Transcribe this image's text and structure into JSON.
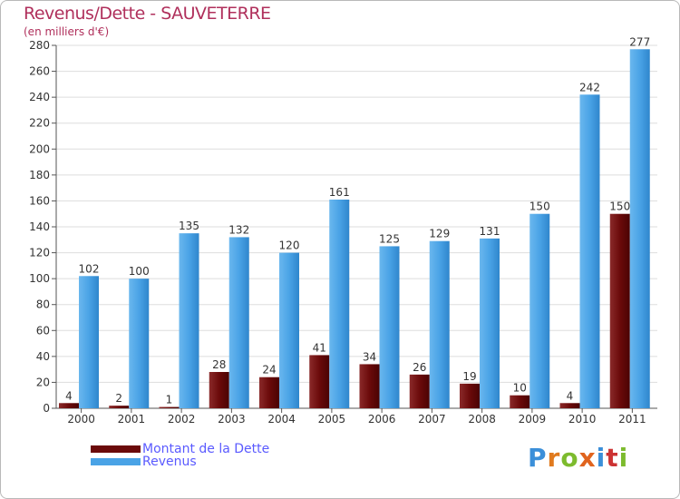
{
  "header": {
    "title": "Revenus/Dette - SAUVETERRE",
    "subtitle": "(en milliers d'€)"
  },
  "legend": [
    {
      "label": "Montant de la Dette",
      "color": "#6b0a0a"
    },
    {
      "label": "Revenus",
      "color": "#4aa3e6"
    }
  ],
  "logo": {
    "text": "Proxiti",
    "letters": [
      "P",
      "r",
      "o",
      "x",
      "i",
      "t",
      "i"
    ],
    "colors": [
      "#3b8fd9",
      "#e07a1e",
      "#7dbb2e",
      "#e0641e",
      "#3b8fd9",
      "#c33",
      "#7dbb2e"
    ]
  },
  "chart_data": {
    "type": "bar",
    "title": "Revenus/Dette - SAUVETERRE",
    "ylabel": "(en milliers d'€)",
    "categories": [
      "2000",
      "2001",
      "2002",
      "2003",
      "2004",
      "2005",
      "2006",
      "2007",
      "2008",
      "2009",
      "2010",
      "2011"
    ],
    "series": [
      {
        "name": "Montant de la Dette",
        "color": "#6b0a0a",
        "values": [
          4,
          2,
          1,
          28,
          24,
          41,
          34,
          26,
          19,
          10,
          4,
          150
        ]
      },
      {
        "name": "Revenus",
        "color": "#4aa3e6",
        "values": [
          102,
          100,
          135,
          132,
          120,
          161,
          125,
          129,
          131,
          150,
          242,
          277
        ]
      }
    ],
    "ylim": [
      0,
      280
    ],
    "yticks": [
      0,
      20,
      40,
      60,
      80,
      100,
      120,
      140,
      160,
      180,
      200,
      220,
      240,
      260,
      280
    ],
    "grid": true,
    "legend": "bottom-left"
  }
}
